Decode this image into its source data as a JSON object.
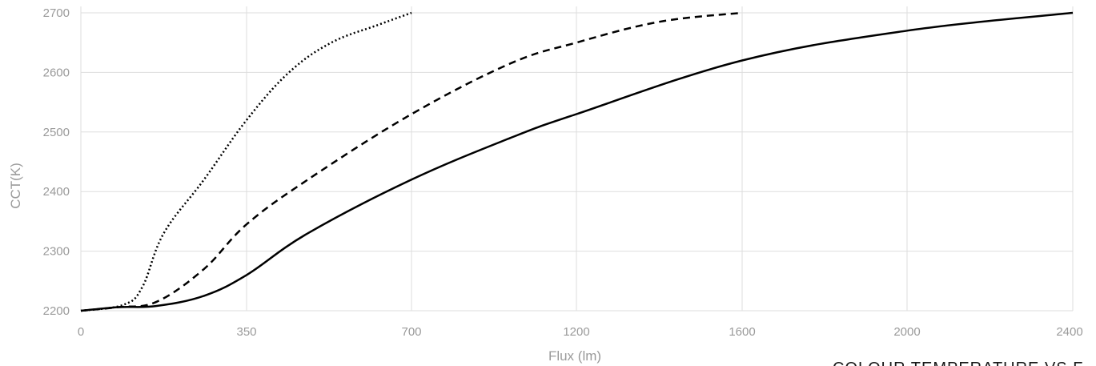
{
  "chart_data": {
    "type": "line",
    "title": "COLOUR TEMPERATURE VS F",
    "xlabel": "Flux (lm)",
    "ylabel": "CCT(K)",
    "x_tick_labels": [
      "0",
      "350",
      "700",
      "1200",
      "1600",
      "2000",
      "2400"
    ],
    "y_tick_labels": [
      "2200",
      "2300",
      "2400",
      "2500",
      "2600",
      "2700"
    ],
    "ylim": [
      2200,
      2700
    ],
    "grid": true,
    "legend": "none",
    "series": [
      {
        "style": "dotted",
        "x": [
          0,
          90,
          130,
          175,
          260,
          350,
          440,
          530,
          630,
          700
        ],
        "y": [
          2200,
          2210,
          2240,
          2330,
          2420,
          2520,
          2600,
          2650,
          2680,
          2700
        ]
      },
      {
        "style": "dashed",
        "x": [
          0,
          80,
          160,
          260,
          350,
          480,
          700,
          1000,
          1200,
          1400,
          1600
        ],
        "y": [
          2200,
          2206,
          2215,
          2270,
          2345,
          2420,
          2530,
          2615,
          2650,
          2685,
          2700
        ]
      },
      {
        "style": "solid",
        "x": [
          0,
          80,
          160,
          260,
          350,
          480,
          700,
          1000,
          1200,
          1600,
          2000,
          2400
        ],
        "y": [
          2200,
          2206,
          2208,
          2225,
          2260,
          2330,
          2420,
          2490,
          2530,
          2620,
          2670,
          2700
        ]
      }
    ],
    "colors": {
      "series": "#000000",
      "grid": "#dddddd",
      "tick_text": "#9a9a9a",
      "title_text": "#1a1a1a"
    }
  }
}
